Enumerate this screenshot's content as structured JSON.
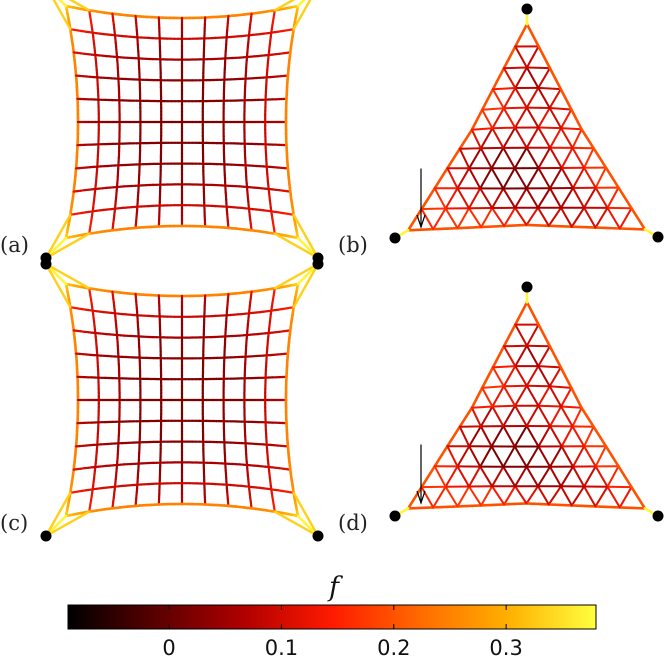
{
  "panels": [
    {
      "id": "a",
      "label": "(a)",
      "shape": "square"
    },
    {
      "id": "b",
      "label": "(b)",
      "shape": "triangle",
      "arrow": true
    },
    {
      "id": "c",
      "label": "(c)",
      "shape": "square"
    },
    {
      "id": "d",
      "label": "(d)",
      "shape": "triangle",
      "arrow": true
    }
  ],
  "colorbar": {
    "title": "f",
    "ticks": [
      "0",
      "0.1",
      "0.2",
      "0.3"
    ],
    "tick_values": [
      0,
      0.1,
      0.2,
      0.3
    ],
    "range": [
      -0.09,
      0.38
    ],
    "colormap": [
      "#000000",
      "#5a0000",
      "#b00000",
      "#ff1a00",
      "#ff6a00",
      "#ffb000",
      "#ffff40"
    ]
  }
}
